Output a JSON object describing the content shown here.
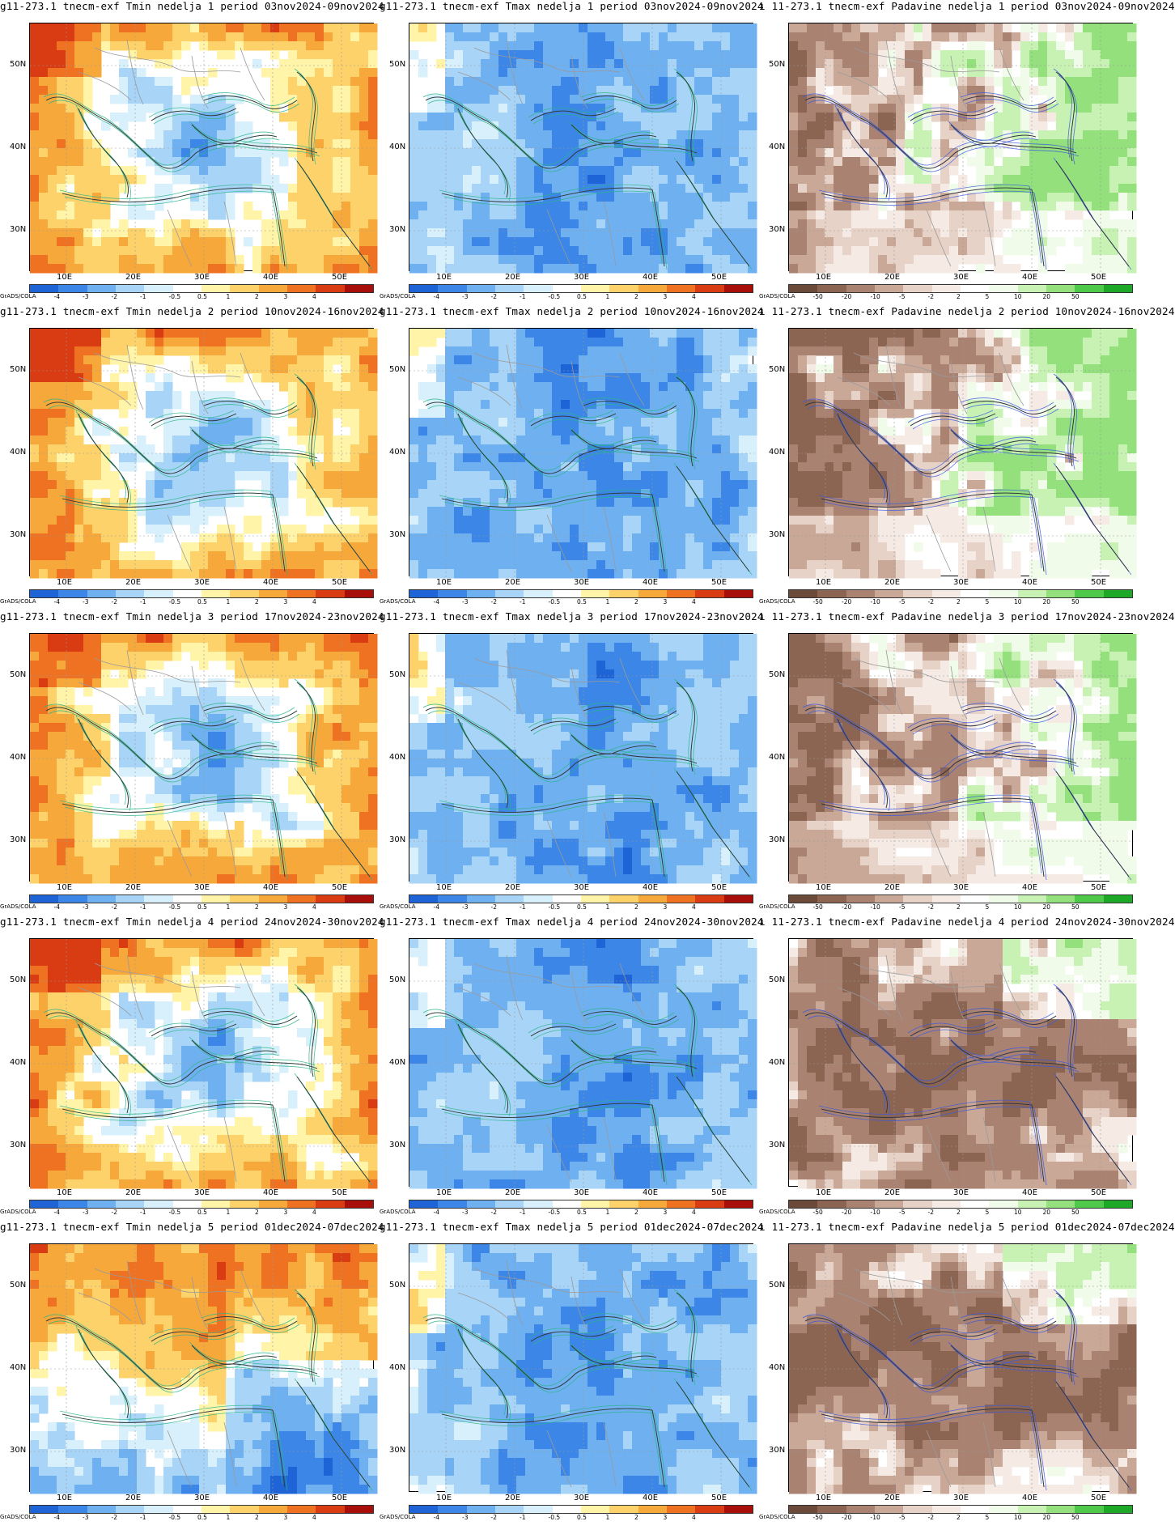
{
  "model_prefix": "g11-273.1 tnecm-exf",
  "credit": "GrADS/COLA",
  "lat_labels": [
    "50N",
    "40N",
    "30N"
  ],
  "lon_labels": [
    "10E",
    "20E",
    "30E",
    "40E",
    "50E"
  ],
  "scales": {
    "temp": {
      "colors": [
        "#1f64d6",
        "#3b86e6",
        "#6fb0f0",
        "#a8d4f7",
        "#d8f0fb",
        "#ffffff",
        "#fff4a8",
        "#fdd26a",
        "#f7a83b",
        "#ef7222",
        "#d93b12",
        "#a80f0a"
      ],
      "labels": [
        "-4",
        "-3",
        "-2",
        "-1",
        "-0.5",
        "0.5",
        "1",
        "2",
        "3",
        "4"
      ]
    },
    "precip": {
      "colors": [
        "#6b4a3a",
        "#8c6552",
        "#a98272",
        "#c9a898",
        "#e6d2c6",
        "#f5ebe4",
        "#ffffff",
        "#f0fbe9",
        "#c8f2b4",
        "#93e07c",
        "#4fc94a",
        "#1ea827"
      ],
      "labels": [
        "-50",
        "-20",
        "-10",
        "-5",
        "-2",
        "2",
        "5",
        "10",
        "20",
        "50"
      ]
    }
  },
  "rows": [
    {
      "week": "1",
      "period": "03nov2024-09nov2024"
    },
    {
      "week": "2",
      "period": "10nov2024-16nov2024"
    },
    {
      "week": "3",
      "period": "17nov2024-23nov2024"
    },
    {
      "week": "4",
      "period": "24nov2024-30nov2024"
    },
    {
      "week": "5",
      "period": "01dec2024-07dec2024"
    }
  ],
  "panels": [
    {
      "title": "g11-273.1 tnecm-exf Tmin nedelja 1 period 03nov2024-09nov2024",
      "variable": "Tmin",
      "scale": "temp",
      "mode": "warm"
    },
    {
      "title": "g11-273.1 tnecm-exf Tmax nedelja 1 period 03nov2024-09nov2024",
      "variable": "Tmax",
      "scale": "temp",
      "mode": "cold"
    },
    {
      "title": "ı 11-273.1 tnecm-exf Padavine nedelja 1 period 03nov2024-09nov2024",
      "variable": "Padavine",
      "scale": "precip",
      "mode": "wetdry"
    },
    {
      "title": "g11-273.1 tnecm-exf Tmin nedelja 2 period 10nov2024-16nov2024",
      "variable": "Tmin",
      "scale": "temp",
      "mode": "warm"
    },
    {
      "title": "g11-273.1 tnecm-exf Tmax nedelja 2 period 10nov2024-16nov2024",
      "variable": "Tmax",
      "scale": "temp",
      "mode": "cold"
    },
    {
      "title": "ı 11-273.1 tnecm-exf Padavine nedelja 2 period 10nov2024-16nov2024",
      "variable": "Padavine",
      "scale": "precip",
      "mode": "wetdry"
    },
    {
      "title": "g11-273.1 tnecm-exf Tmin nedelja 3 period 17nov2024-23nov2024",
      "variable": "Tmin",
      "scale": "temp",
      "mode": "warm"
    },
    {
      "title": "g11-273.1 tnecm-exf Tmax nedelja 3 period 17nov2024-23nov2024",
      "variable": "Tmax",
      "scale": "temp",
      "mode": "cold"
    },
    {
      "title": "ı 11-273.1 tnecm-exf Padavine nedelja 3 period 17nov2024-23nov2024",
      "variable": "Padavine",
      "scale": "precip",
      "mode": "wetdry"
    },
    {
      "title": "g11-273.1 tnecm-exf Tmin nedelja 4 period 24nov2024-30nov2024",
      "variable": "Tmin",
      "scale": "temp",
      "mode": "warm"
    },
    {
      "title": "g11-273.1 tnecm-exf Tmax nedelja 4 period 24nov2024-30nov2024",
      "variable": "Tmax",
      "scale": "temp",
      "mode": "cold"
    },
    {
      "title": "ı 11-273.1 tnecm-exf Padavine nedelja 4 period 24nov2024-30nov2024",
      "variable": "Padavine",
      "scale": "precip",
      "mode": "dry"
    },
    {
      "title": "g11-273.1 tnecm-exf Tmin nedelja 5 period 01dec2024-07dec2024",
      "variable": "Tmin",
      "scale": "temp",
      "mode": "hot"
    },
    {
      "title": "g11-273.1 tnecm-exf Tmax nedelja 5 period 01dec2024-07dec2024",
      "variable": "Tmax",
      "scale": "temp",
      "mode": "cold"
    },
    {
      "title": "ı 11-273.1 tnecm-exf Padavine nedelja 5 period 01dec2024-07dec2024",
      "variable": "Padavine",
      "scale": "precip",
      "mode": "dry"
    }
  ]
}
